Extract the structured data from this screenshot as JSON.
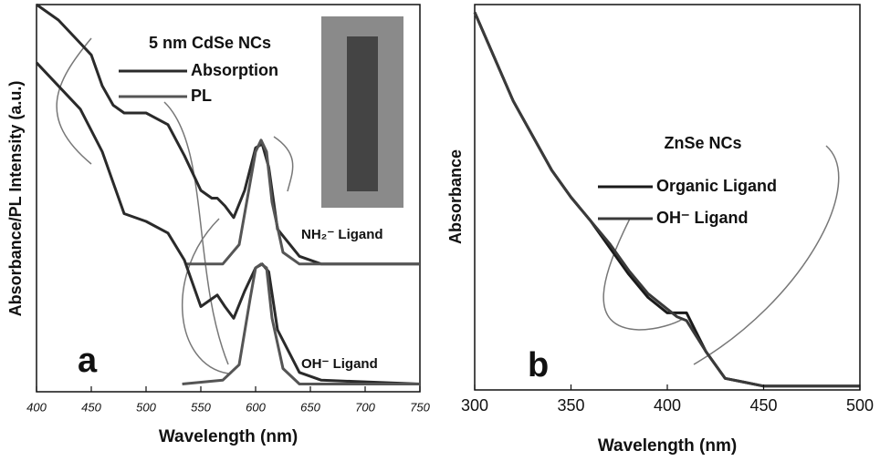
{
  "chart_data": [
    {
      "type": "line",
      "title": "5 nm CdSe NCs",
      "xlabel": "Wavelength (nm)",
      "ylabel": "Absorbance/PL Intensity (a.u.)",
      "xlim": [
        400,
        750
      ],
      "xticks": [
        400,
        450,
        500,
        550,
        600,
        650,
        700,
        750
      ],
      "ylim": [
        0,
        1
      ],
      "annotations": [
        "NH₂⁻ Ligand",
        "OH⁻ Ligand",
        "a"
      ],
      "series": [
        {
          "name": "Absorption",
          "color": "#2a2a2a",
          "x": [
            400,
            420,
            440,
            450,
            460,
            470,
            480,
            500,
            520,
            535,
            550,
            560,
            565,
            572,
            580,
            590,
            600,
            606,
            612,
            620,
            640,
            660,
            750
          ],
          "values": [
            1.0,
            0.96,
            0.9,
            0.87,
            0.79,
            0.74,
            0.72,
            0.72,
            0.69,
            0.61,
            0.52,
            0.5,
            0.5,
            0.48,
            0.45,
            0.52,
            0.63,
            0.64,
            0.58,
            0.42,
            0.35,
            0.33,
            0.33
          ]
        },
        {
          "name": "PL",
          "color": "#555555",
          "x": [
            537,
            570,
            585,
            595,
            600,
            605,
            610,
            615,
            625,
            640,
            750
          ],
          "values": [
            0.33,
            0.33,
            0.38,
            0.54,
            0.62,
            0.65,
            0.62,
            0.49,
            0.36,
            0.33,
            0.33
          ]
        },
        {
          "color": "#2a2a2a",
          "x": [
            400,
            420,
            440,
            460,
            480,
            500,
            520,
            535,
            550,
            560,
            565,
            572,
            580,
            590,
            600,
            606,
            612,
            620,
            640,
            660,
            750
          ],
          "values": [
            0.85,
            0.79,
            0.73,
            0.62,
            0.46,
            0.44,
            0.41,
            0.34,
            0.22,
            0.24,
            0.25,
            0.22,
            0.19,
            0.26,
            0.32,
            0.33,
            0.31,
            0.16,
            0.05,
            0.03,
            0.02
          ]
        },
        {
          "color": "#555555",
          "x": [
            533,
            570,
            585,
            595,
            600,
            605,
            610,
            615,
            625,
            640,
            750
          ],
          "values": [
            0.02,
            0.03,
            0.07,
            0.24,
            0.32,
            0.33,
            0.32,
            0.19,
            0.06,
            0.02,
            0.02
          ]
        }
      ]
    },
    {
      "type": "line",
      "title": "ZnSe NCs",
      "xlabel": "Wavelength (nm)",
      "ylabel": "Absorbance",
      "xlim": [
        300,
        500
      ],
      "xticks": [
        300,
        350,
        400,
        450,
        500
      ],
      "ylim": [
        0,
        1
      ],
      "annotations": [
        "b"
      ],
      "series": [
        {
          "name": "Organic Ligand",
          "color": "#1a1a1a",
          "x": [
            300,
            320,
            340,
            350,
            360,
            370,
            380,
            390,
            400,
            405,
            410,
            415,
            420,
            430,
            440,
            450,
            500
          ],
          "values": [
            0.98,
            0.75,
            0.57,
            0.5,
            0.44,
            0.37,
            0.3,
            0.24,
            0.2,
            0.2,
            0.2,
            0.15,
            0.1,
            0.03,
            0.02,
            0.01,
            0.01
          ]
        },
        {
          "name": "OH⁻ Ligand",
          "color": "#3a3a3a",
          "x": [
            300,
            320,
            340,
            350,
            360,
            370,
            380,
            390,
            400,
            405,
            410,
            415,
            420,
            430,
            440,
            450,
            500
          ],
          "values": [
            0.98,
            0.75,
            0.57,
            0.5,
            0.44,
            0.38,
            0.31,
            0.25,
            0.21,
            0.19,
            0.18,
            0.14,
            0.1,
            0.03,
            0.02,
            0.01,
            0.01
          ]
        }
      ]
    }
  ]
}
